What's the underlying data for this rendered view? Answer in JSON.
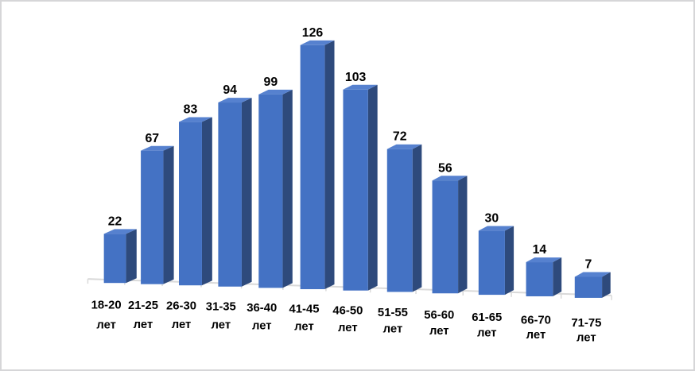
{
  "window": {
    "background": "#ffffff",
    "border_color": "#d6d6d8"
  },
  "chart_data": {
    "type": "bar",
    "style": "3d-column",
    "title": "",
    "categories": [
      "18-20 лет",
      "21-25 лет",
      "26-30 лет",
      "31-35 лет",
      "36-40 лет",
      "41-45 лет",
      "46-50 лет",
      "51-55 лет",
      "56-60 лет",
      "61-65 лет",
      "66-70 лет",
      "71-75 лет"
    ],
    "values": [
      22,
      67,
      83,
      94,
      99,
      126,
      103,
      72,
      56,
      30,
      14,
      7
    ],
    "data_labels": [
      22,
      67,
      83,
      94,
      99,
      126,
      103,
      72,
      56,
      30,
      14,
      7
    ],
    "xlabel": "",
    "ylabel": "",
    "ylim": [
      0,
      140
    ],
    "gridlines": false,
    "legend": "none",
    "colors": {
      "bar_front": "#4472c4",
      "bar_side": "#2e4a7c",
      "bar_top": "#5681cf",
      "axis_line": "#d9d9d9",
      "label_text": "#000000"
    }
  }
}
